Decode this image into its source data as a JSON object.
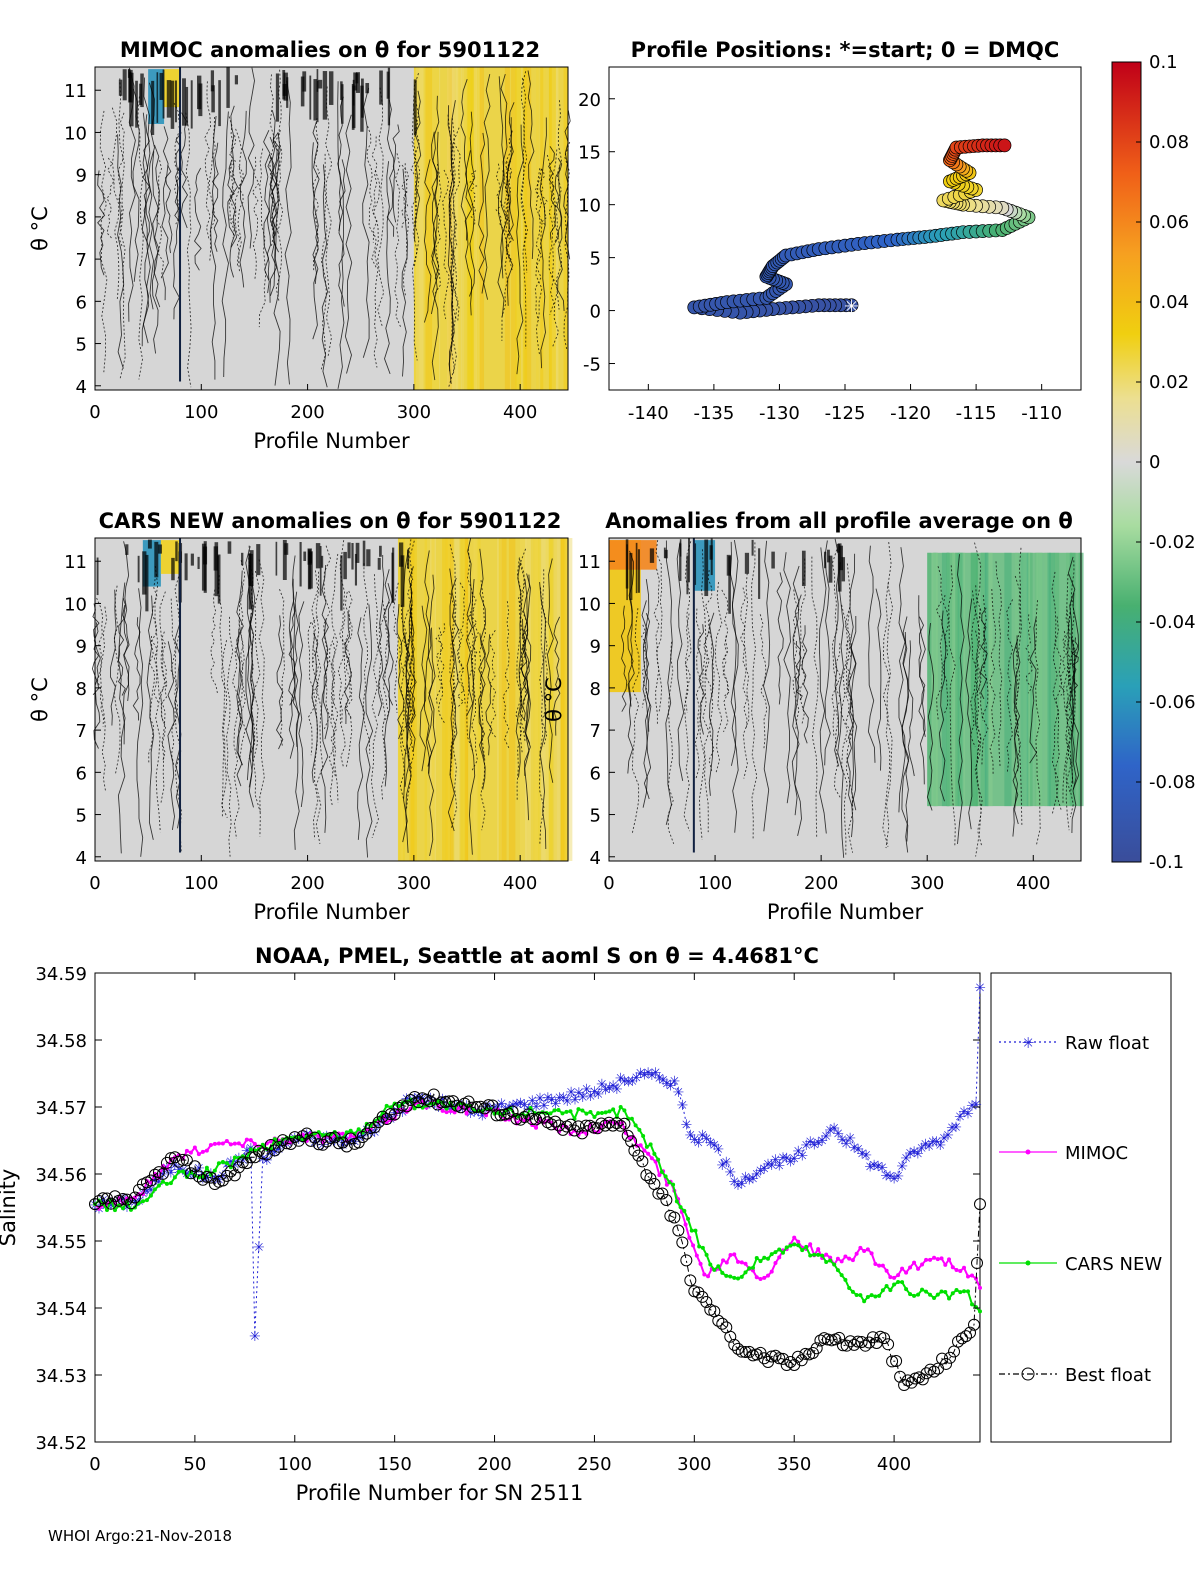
{
  "footer": "WHOI Argo:21-Nov-2018",
  "colors": {
    "raw": "#1f1fd6",
    "mimoc": "#ff00ff",
    "cars": "#00e000",
    "best": "#000000",
    "field_gray": "#d6d6d6",
    "field_yellow": "#f0d022",
    "field_green": "#a8dc9a"
  },
  "chart_data": [
    {
      "id": "mimoc",
      "type": "heatmap",
      "title": "MIMOC anomalies on θ  for 5901122",
      "xlabel": "Profile Number",
      "ylabel": "θ °C",
      "xlim": [
        0,
        445
      ],
      "ylim": [
        3.9,
        11.55
      ],
      "xticks": [
        "0",
        "100",
        "200",
        "300",
        "400"
      ],
      "yticks": [
        "4",
        "5",
        "6",
        "7",
        "8",
        "9",
        "10",
        "11"
      ],
      "anomaly_by_range": [
        {
          "x": [
            0,
            300
          ],
          "value": 0.0
        },
        {
          "x": [
            300,
            445
          ],
          "value": 0.028
        }
      ]
    },
    {
      "id": "positions",
      "type": "scatter",
      "title": "Profile Positions: *=start; 0 = DMQC",
      "xlim": [
        -143,
        -107
      ],
      "ylim": [
        -7.5,
        23
      ],
      "xticks": [
        "-140",
        "-135",
        "-130",
        "-125",
        "-120",
        "-115",
        "-110"
      ],
      "yticks": [
        "-5",
        "0",
        "5",
        "10",
        "15",
        "20"
      ],
      "track": [
        {
          "lon": -124.5,
          "lat": 0.5,
          "c": -0.095
        },
        {
          "lon": -127,
          "lat": 0.5,
          "c": -0.095
        },
        {
          "lon": -130,
          "lat": 0.2,
          "c": -0.093
        },
        {
          "lon": -133,
          "lat": -0.2,
          "c": -0.092
        },
        {
          "lon": -136.5,
          "lat": 0.3,
          "c": -0.091
        },
        {
          "lon": -134,
          "lat": 0.8,
          "c": -0.09
        },
        {
          "lon": -131,
          "lat": 1.2,
          "c": -0.089
        },
        {
          "lon": -129.5,
          "lat": 2.5,
          "c": -0.088
        },
        {
          "lon": -131,
          "lat": 3.2,
          "c": -0.087
        },
        {
          "lon": -130.5,
          "lat": 4.2,
          "c": -0.086
        },
        {
          "lon": -129.5,
          "lat": 5.2,
          "c": -0.085
        },
        {
          "lon": -127,
          "lat": 5.8,
          "c": -0.083
        },
        {
          "lon": -124,
          "lat": 6.3,
          "c": -0.08
        },
        {
          "lon": -121,
          "lat": 6.7,
          "c": -0.075
        },
        {
          "lon": -118.5,
          "lat": 7.0,
          "c": -0.06
        },
        {
          "lon": -116,
          "lat": 7.4,
          "c": -0.05
        },
        {
          "lon": -113,
          "lat": 7.6,
          "c": -0.035
        },
        {
          "lon": -111,
          "lat": 8.8,
          "c": -0.025
        },
        {
          "lon": -113,
          "lat": 9.7,
          "c": 0.005
        },
        {
          "lon": -116,
          "lat": 10.0,
          "c": 0.02
        },
        {
          "lon": -117.5,
          "lat": 10.4,
          "c": 0.022
        },
        {
          "lon": -115,
          "lat": 11.4,
          "c": 0.028
        },
        {
          "lon": -117,
          "lat": 12.2,
          "c": 0.032
        },
        {
          "lon": -115.5,
          "lat": 13.0,
          "c": 0.036
        },
        {
          "lon": -117,
          "lat": 14.2,
          "c": 0.07
        },
        {
          "lon": -116.5,
          "lat": 15.4,
          "c": 0.08
        },
        {
          "lon": -114.5,
          "lat": 15.6,
          "c": 0.088
        },
        {
          "lon": -112.5,
          "lat": 15.6,
          "c": 0.095
        }
      ],
      "start": {
        "lon": -124.5,
        "lat": 0.5
      }
    },
    {
      "id": "colorbar",
      "type": "heatmap",
      "range": [
        -0.1,
        0.1
      ],
      "ticks": [
        "0.1",
        "0.08",
        "0.06",
        "0.04",
        "0.02",
        "0",
        "-0.02",
        "-0.04",
        "-0.06",
        "-0.08",
        "-0.1"
      ]
    },
    {
      "id": "cars",
      "type": "heatmap",
      "title": "CARS NEW anomalies on θ for 5901122",
      "xlabel": "Profile Number",
      "ylabel": "θ °C",
      "xlim": [
        0,
        445
      ],
      "ylim": [
        3.9,
        11.55
      ],
      "xticks": [
        "0",
        "100",
        "200",
        "300",
        "400"
      ],
      "yticks": [
        "4",
        "5",
        "6",
        "7",
        "8",
        "9",
        "10",
        "11"
      ],
      "anomaly_by_range": [
        {
          "x": [
            0,
            285
          ],
          "value": 0.0
        },
        {
          "x": [
            285,
            445
          ],
          "value": 0.028
        }
      ]
    },
    {
      "id": "allavg",
      "type": "heatmap",
      "title": "Anomalies from all profile average on θ",
      "xlabel": "Profile Number",
      "ylabel": "θ °C",
      "xlim": [
        0,
        445
      ],
      "ylim": [
        3.9,
        11.55
      ],
      "xticks": [
        "0",
        "100",
        "200",
        "300",
        "400"
      ],
      "yticks": [
        "4",
        "5",
        "6",
        "7",
        "8",
        "9",
        "10",
        "11"
      ],
      "anomaly_by_range": [
        {
          "x": [
            0,
            300
          ],
          "value": 0.0
        },
        {
          "x": [
            300,
            445
          ],
          "value": -0.03
        }
      ]
    },
    {
      "id": "salinity",
      "type": "line",
      "title": "NOAA, PMEL, Seattle at aoml S on θ = 4.4681°C",
      "xlabel": "Profile Number for SN 2511",
      "ylabel": "Salinity",
      "xlim": [
        0,
        443
      ],
      "ylim": [
        34.52,
        34.59
      ],
      "xticks": [
        "0",
        "50",
        "100",
        "150",
        "200",
        "250",
        "300",
        "350",
        "400"
      ],
      "yticks": [
        "34.52",
        "34.53",
        "34.54",
        "34.55",
        "34.56",
        "34.57",
        "34.58",
        "34.59"
      ],
      "legend": [
        "Raw float",
        "MIMOC",
        "CARS NEW",
        "Best float"
      ],
      "series": [
        {
          "name": "Raw float",
          "x": [
            0,
            20,
            40,
            60,
            78,
            80,
            84,
            100,
            130,
            160,
            190,
            215,
            250,
            265,
            275,
            290,
            298,
            310,
            320,
            335,
            350,
            370,
            390,
            400,
            410,
            425,
            435,
            441,
            443
          ],
          "values": [
            34.5555,
            34.556,
            34.5615,
            34.5595,
            34.564,
            34.536,
            34.5625,
            34.5655,
            34.565,
            34.5715,
            34.5695,
            34.5705,
            34.5725,
            34.574,
            34.575,
            34.574,
            34.566,
            34.5645,
            34.559,
            34.561,
            34.5625,
            34.567,
            34.5615,
            34.5595,
            34.5635,
            34.5655,
            34.5695,
            34.5705,
            34.588
          ]
        },
        {
          "name": "MIMOC",
          "x": [
            0,
            20,
            40,
            60,
            80,
            100,
            130,
            160,
            190,
            215,
            240,
            262,
            275,
            290,
            305,
            320,
            335,
            350,
            370,
            385,
            400,
            420,
            435,
            443
          ],
          "values": [
            34.5555,
            34.5565,
            34.5625,
            34.5645,
            34.5645,
            34.5655,
            34.5655,
            34.5705,
            34.5695,
            34.568,
            34.5665,
            34.5675,
            34.5635,
            34.5575,
            34.545,
            34.548,
            34.5445,
            34.5505,
            34.5465,
            34.5485,
            34.5445,
            34.5475,
            34.546,
            34.543
          ]
        },
        {
          "name": "CARS NEW",
          "x": [
            0,
            20,
            40,
            60,
            80,
            100,
            130,
            150,
            170,
            200,
            230,
            250,
            265,
            280,
            295,
            308,
            320,
            335,
            350,
            370,
            385,
            400,
            420,
            435,
            443
          ],
          "values": [
            34.5555,
            34.555,
            34.5595,
            34.5605,
            34.5635,
            34.5655,
            34.566,
            34.5705,
            34.5705,
            34.569,
            34.5695,
            34.5685,
            34.5695,
            34.563,
            34.5545,
            34.5465,
            34.5445,
            34.5475,
            34.5495,
            34.5465,
            34.541,
            34.5435,
            34.5415,
            34.5425,
            34.5395
          ]
        },
        {
          "name": "Best float",
          "x": [
            0,
            20,
            40,
            60,
            80,
            100,
            130,
            160,
            185,
            215,
            240,
            265,
            270,
            280,
            290,
            300,
            310,
            320,
            335,
            350,
            365,
            380,
            395,
            405,
            420,
            430,
            440,
            443
          ],
          "values": [
            34.5555,
            34.5565,
            34.5625,
            34.5585,
            34.5625,
            34.5655,
            34.5645,
            34.5715,
            34.5705,
            34.5685,
            34.5665,
            34.5675,
            34.5635,
            34.5585,
            34.5535,
            34.5425,
            34.5395,
            34.5345,
            34.5325,
            34.5315,
            34.5355,
            34.5345,
            34.5355,
            34.5285,
            34.5305,
            34.5335,
            34.5375,
            34.5555
          ]
        }
      ]
    }
  ]
}
